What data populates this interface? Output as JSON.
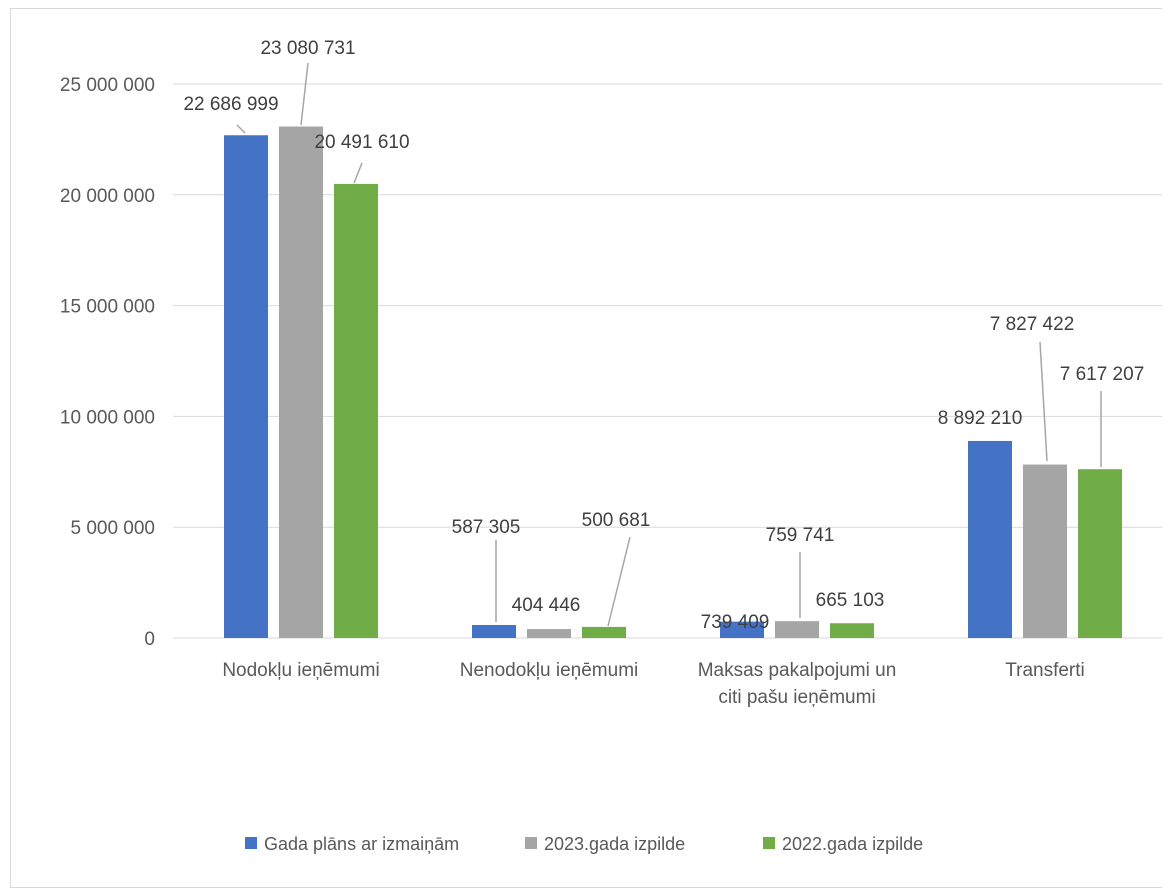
{
  "chart_data": {
    "type": "bar",
    "title": "",
    "xlabel": "",
    "ylabel": "",
    "ylim": [
      0,
      25000000
    ],
    "yticks": [
      0,
      5000000,
      10000000,
      15000000,
      20000000,
      25000000
    ],
    "ytick_labels": [
      "0",
      "5 000 000",
      "10 000 000",
      "15 000 000",
      "20 000 000",
      "25 000 000"
    ],
    "grid": true,
    "legend_position": "bottom",
    "categories": [
      [
        "Nodokļu ieņēmumi"
      ],
      [
        "Nenodokļu ieņēmumi"
      ],
      [
        "Maksas pakalpojumi un",
        "citi pašu ieņēmumi"
      ],
      [
        "Transferti"
      ]
    ],
    "series": [
      {
        "name": "Gada plāns ar izmaiņām",
        "color": "#4472c4",
        "values": [
          22686999,
          587305,
          739409,
          8892210
        ],
        "labels": [
          "22 686 999",
          "587 305",
          "739 409",
          "8 892 210"
        ]
      },
      {
        "name": "2023.gada izpilde",
        "color": "#a5a5a5",
        "values": [
          23080731,
          404446,
          759741,
          7827422
        ],
        "labels": [
          "23 080 731",
          "404 446",
          "759 741",
          "7 827 422"
        ]
      },
      {
        "name": "2022.gada izpilde",
        "color": "#70ad47",
        "values": [
          20491610,
          500681,
          665103,
          7617207
        ],
        "labels": [
          "20 491 610",
          "500 681",
          "665 103",
          "7 617 207"
        ]
      }
    ]
  }
}
